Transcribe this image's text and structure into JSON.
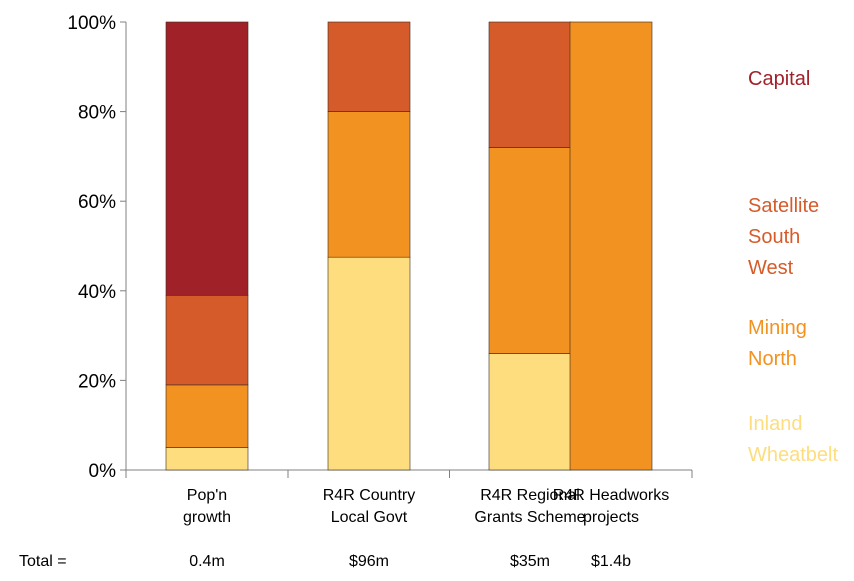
{
  "chart_data": {
    "type": "bar",
    "stacked": true,
    "categories": [
      [
        "Pop'n",
        "growth"
      ],
      [
        "R4R Country",
        "Local Govt"
      ],
      [
        "R4R Regional",
        "Grants Scheme"
      ],
      [
        "R4R Headworks",
        "projects"
      ]
    ],
    "ylim": [
      0,
      100
    ],
    "yticks": [
      "0%",
      "20%",
      "40%",
      "60%",
      "80%",
      "100%"
    ],
    "grid": false,
    "legend_position": "right",
    "series": [
      {
        "name": [
          "Inland",
          "Wheatbelt"
        ],
        "color": "#FDDD7E",
        "values": [
          5,
          47.5,
          26,
          0
        ]
      },
      {
        "name": [
          "Mining",
          "North"
        ],
        "color": "#F29220",
        "values": [
          14,
          32.5,
          46,
          100
        ]
      },
      {
        "name": [
          "Satellite",
          "South",
          "West"
        ],
        "color": "#D65B2A",
        "values": [
          20,
          20,
          28,
          0
        ]
      },
      {
        "name": [
          "Capital"
        ],
        "color": "#A02128",
        "values": [
          61,
          0,
          0,
          0
        ]
      }
    ],
    "totals": {
      "label": "Total  =",
      "values": [
        "0.4m",
        "$96m",
        "$35m",
        "$1.4b"
      ]
    }
  }
}
